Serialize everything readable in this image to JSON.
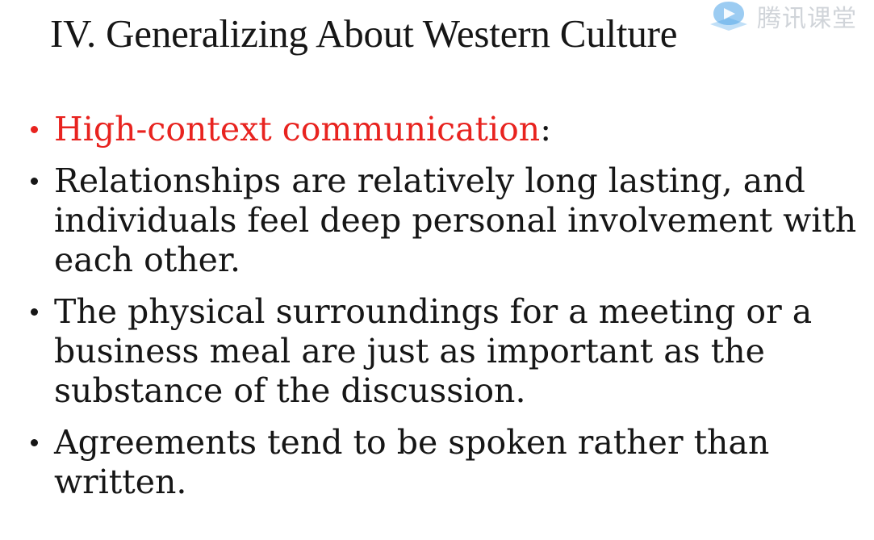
{
  "slide": {
    "title": "IV. Generalizing About Western Culture",
    "bullets": [
      {
        "highlight": "High-context communication",
        "text": ":",
        "highlight_color": "#e8231f"
      },
      {
        "text": "Relationships are relatively long lasting, and individuals feel deep personal involvement with each other."
      },
      {
        "text": "The physical surroundings for a meeting or a business meal are just as important as the substance of the discussion."
      },
      {
        "text": "Agreements tend to be spoken rather than written."
      }
    ]
  },
  "watermark": {
    "text": "腾讯课堂",
    "icon": "tencent-classroom-logo-icon"
  },
  "colors": {
    "text": "#161616",
    "accent": "#e8231f",
    "background": "#ffffff",
    "watermark_blue": "#4aa3e8"
  }
}
